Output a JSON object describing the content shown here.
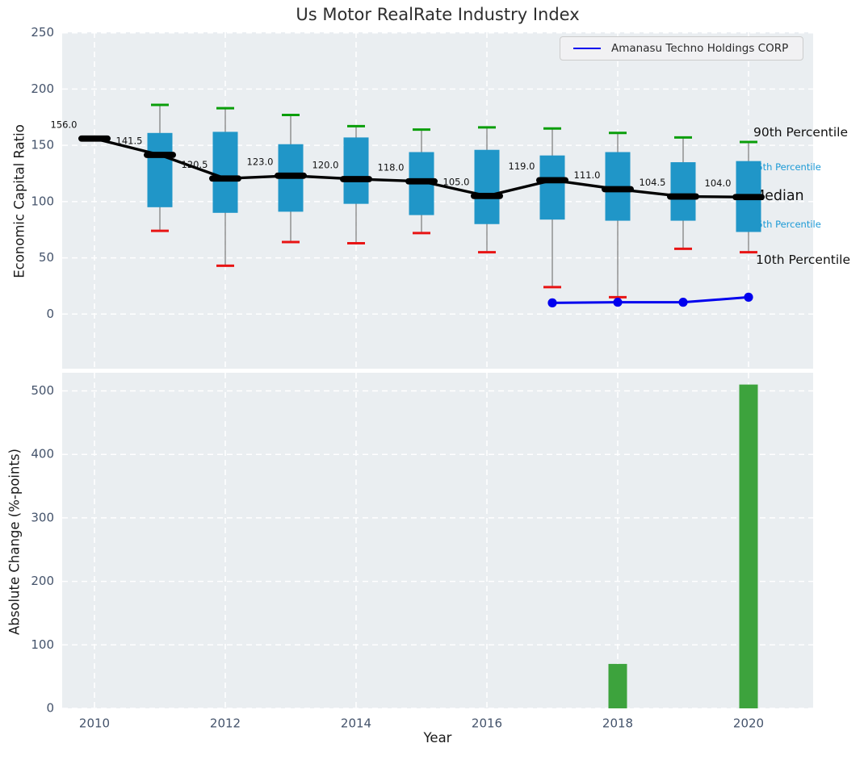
{
  "colors": {
    "figure_bg": "#ffffff",
    "plot_bg": "#eaeef1",
    "grid": "#ffffff",
    "tick_text": "#44536b",
    "box_fill": "#2096c8",
    "whisker": "#8a8a8a",
    "cap_green": "#0a9e0a",
    "cap_red": "#e81414",
    "median_black": "#000000",
    "company_blue": "#0000ee",
    "bar_green": "#3da33d",
    "annotation_blue": "#1c9ad6"
  },
  "chart_data": [
    {
      "type": "boxplot+line",
      "title": "Us Motor RealRate Industry Index",
      "ylabel": "Economic Capital Ratio",
      "ylim": [
        -48,
        251
      ],
      "yticks": [
        0,
        50,
        100,
        150,
        200,
        250
      ],
      "grid": true,
      "legend_position": "upper right",
      "years": [
        2010,
        2011,
        2012,
        2013,
        2014,
        2015,
        2016,
        2017,
        2018,
        2019,
        2020
      ],
      "median": [
        156.0,
        141.5,
        120.5,
        123.0,
        120.0,
        118.0,
        105.0,
        119.0,
        111.0,
        104.5,
        104.0
      ],
      "p25": [
        null,
        95,
        90,
        91,
        98,
        88,
        80,
        84,
        83,
        83,
        73
      ],
      "p75": [
        null,
        161,
        162,
        151,
        157,
        144,
        146,
        141,
        144,
        135,
        136
      ],
      "p10": [
        null,
        74,
        43,
        64,
        63,
        72,
        55,
        24,
        15,
        58,
        55
      ],
      "p90": [
        null,
        186,
        183,
        177,
        167,
        164,
        166,
        165,
        161,
        157,
        153
      ],
      "series": [
        {
          "name": "Amanasu Techno Holdings CORP",
          "x": [
            2017,
            2018,
            2019,
            2020
          ],
          "y": [
            10,
            10.5,
            10.5,
            15
          ],
          "color": "#0000ee"
        }
      ],
      "annotations": {
        "p90": "90th Percentile",
        "p75": "75th Percentile",
        "median": "Median",
        "p25": "25th Percentile",
        "p10": "10th Percentile"
      }
    },
    {
      "type": "bar",
      "ylabel": "Absolute Change (%-points)",
      "xlabel": "Year",
      "ylim": [
        0,
        530
      ],
      "yticks": [
        0,
        100,
        200,
        300,
        400,
        500
      ],
      "xticks": [
        2010,
        2012,
        2014,
        2016,
        2018,
        2020
      ],
      "grid": true,
      "x": [
        2018,
        2020
      ],
      "values": [
        70,
        510
      ]
    }
  ]
}
